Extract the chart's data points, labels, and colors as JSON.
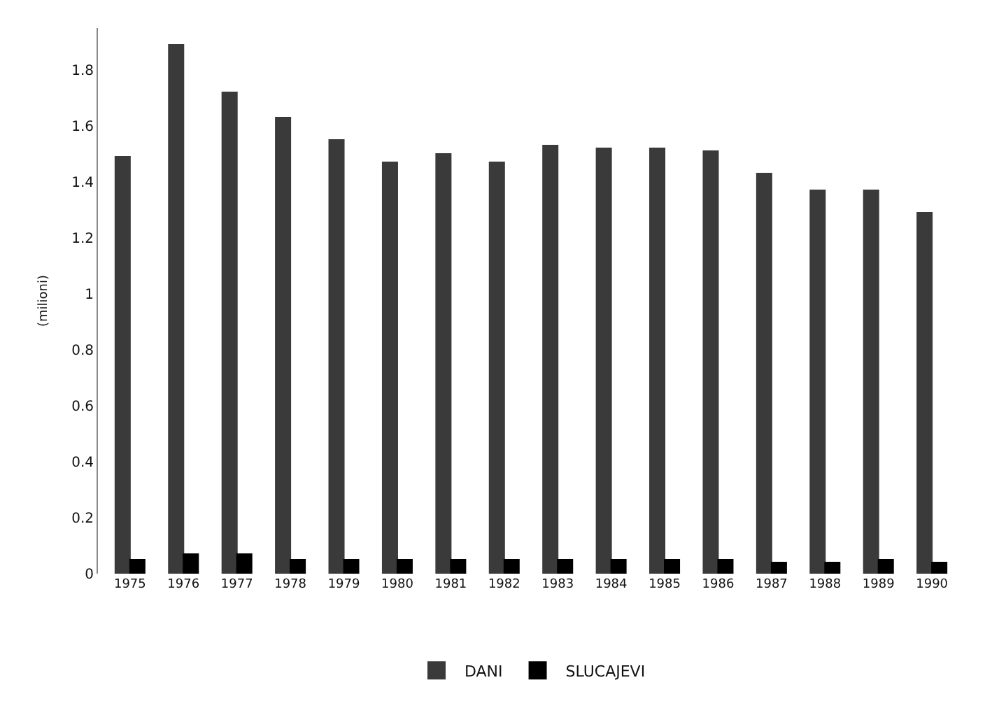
{
  "chart_data": {
    "type": "bar",
    "ylabel": "(milioni)",
    "categories": [
      "1975",
      "1976",
      "1977",
      "1978",
      "1979",
      "1980",
      "1981",
      "1982",
      "1983",
      "1984",
      "1985",
      "1986",
      "1987",
      "1988",
      "1989",
      "1990"
    ],
    "series": [
      {
        "name": "DANI",
        "color": "#3a3a3a",
        "values": [
          1.49,
          1.89,
          1.72,
          1.63,
          1.55,
          1.47,
          1.5,
          1.47,
          1.53,
          1.52,
          1.52,
          1.51,
          1.43,
          1.37,
          1.37,
          1.29
        ]
      },
      {
        "name": "SLUCAJEVI",
        "color": "#000000",
        "values": [
          0.05,
          0.07,
          0.07,
          0.05,
          0.05,
          0.05,
          0.05,
          0.05,
          0.05,
          0.05,
          0.05,
          0.05,
          0.04,
          0.04,
          0.05,
          0.04
        ]
      }
    ],
    "ylim": [
      0,
      1.95
    ],
    "yticks": [
      0,
      0.2,
      0.4,
      0.6,
      0.8,
      1,
      1.2,
      1.4,
      1.6,
      1.8
    ],
    "legend": "bottom"
  }
}
